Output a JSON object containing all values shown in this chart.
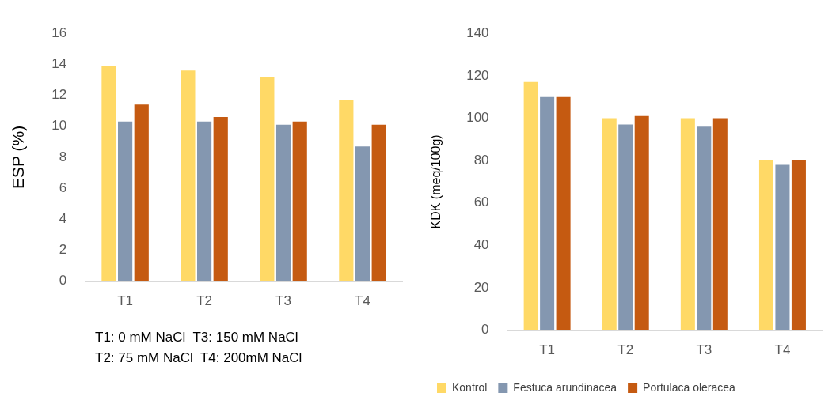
{
  "chart_data": [
    {
      "type": "bar",
      "ylabel": "ESP (%)",
      "categories": [
        "T1",
        "T2",
        "T3",
        "T4"
      ],
      "series": [
        {
          "color": "#ffd966",
          "values": [
            13.9,
            13.6,
            13.2,
            11.7
          ]
        },
        {
          "color": "#8497b0",
          "values": [
            10.3,
            10.3,
            10.1,
            8.7
          ]
        },
        {
          "color": "#c55a11",
          "values": [
            11.4,
            10.6,
            10.3,
            10.1
          ]
        }
      ],
      "ylim": [
        0,
        16
      ],
      "yticks": [
        0,
        2,
        4,
        6,
        8,
        10,
        12,
        14,
        16
      ],
      "grid": false,
      "legend": false,
      "annotations": [
        "T1: 0 mM NaCl  T3: 150 mM NaCl",
        "T2: 75 mM NaCl  T4: 200mM NaCl"
      ]
    },
    {
      "type": "bar",
      "ylabel": "KDK (meq/100g)",
      "categories": [
        "T1",
        "T2",
        "T3",
        "T4"
      ],
      "series": [
        {
          "name": "Kontrol",
          "color": "#ffd966",
          "values": [
            117,
            100,
            100,
            80
          ]
        },
        {
          "name": "Festuca arundinacea",
          "color": "#8497b0",
          "values": [
            110,
            97,
            96,
            78
          ]
        },
        {
          "name": "Portulaca oleracea",
          "color": "#c55a11",
          "values": [
            110,
            101,
            100,
            80
          ]
        }
      ],
      "ylim": [
        0,
        140
      ],
      "yticks": [
        0,
        20,
        40,
        60,
        80,
        100,
        120,
        140
      ],
      "grid": false,
      "legend": "bottom"
    }
  ]
}
